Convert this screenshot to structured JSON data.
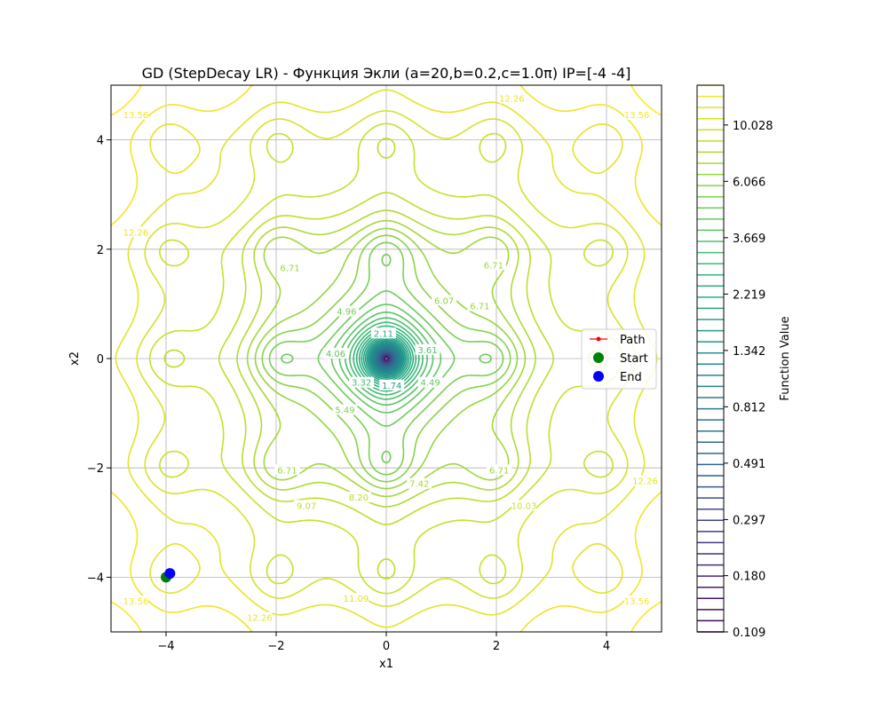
{
  "chart_data": {
    "type": "contour",
    "title": "GD (StepDecay LR) - Функция Экли (a=20,b=0.2,c=1.0π) IP=[-4 -4]",
    "xlabel": "x1",
    "ylabel": "x2",
    "xlim": [
      -5,
      5
    ],
    "ylim": [
      -5,
      5
    ],
    "x_ticks": [
      -4,
      -2,
      0,
      2,
      4
    ],
    "y_ticks": [
      -4,
      -2,
      0,
      2,
      4
    ],
    "x_tick_labels": [
      "−4",
      "−2",
      "0",
      "2",
      "4"
    ],
    "y_tick_labels": [
      "−4",
      "−2",
      "0",
      "2",
      "4"
    ],
    "grid": true,
    "function": {
      "name": "ackley",
      "a": 20,
      "b": 0.2,
      "c": 3.14159
    },
    "contour_levels": {
      "min": 0.109,
      "max": 14.3,
      "count": 50,
      "scale": "log"
    },
    "contour_labels": [
      {
        "text": "13.56",
        "x": -4.55,
        "y": 4.45
      },
      {
        "text": "12.26",
        "x": 2.28,
        "y": 4.75
      },
      {
        "text": "13.56",
        "x": 4.55,
        "y": 4.45
      },
      {
        "text": "12.26",
        "x": -4.55,
        "y": 2.3
      },
      {
        "text": "6.71",
        "x": -1.75,
        "y": 1.65
      },
      {
        "text": "6.71",
        "x": 1.95,
        "y": 1.7
      },
      {
        "text": "6.07",
        "x": 1.05,
        "y": 1.05
      },
      {
        "text": "6.71",
        "x": 1.7,
        "y": 0.95
      },
      {
        "text": "4.96",
        "x": -0.72,
        "y": 0.85
      },
      {
        "text": "4.06",
        "x": -0.92,
        "y": 0.08
      },
      {
        "text": "3.61",
        "x": 0.75,
        "y": 0.15
      },
      {
        "text": "4.49",
        "x": 0.8,
        "y": -0.45
      },
      {
        "text": "3.32",
        "x": -0.45,
        "y": -0.45
      },
      {
        "text": "2.11",
        "x": -0.05,
        "y": 0.45
      },
      {
        "text": "1.74",
        "x": 0.1,
        "y": -0.5
      },
      {
        "text": "5.49",
        "x": -0.75,
        "y": -0.95
      },
      {
        "text": "6.71",
        "x": -1.8,
        "y": -2.05
      },
      {
        "text": "6.71",
        "x": 2.05,
        "y": -2.05
      },
      {
        "text": "7.42",
        "x": 0.6,
        "y": -2.3
      },
      {
        "text": "8.20",
        "x": -0.5,
        "y": -2.55
      },
      {
        "text": "9.07",
        "x": -1.45,
        "y": -2.7
      },
      {
        "text": "10.03",
        "x": 2.5,
        "y": -2.7
      },
      {
        "text": "12.26",
        "x": 4.7,
        "y": -2.25
      },
      {
        "text": "11.09",
        "x": -0.55,
        "y": -4.4
      },
      {
        "text": "13.56",
        "x": -4.55,
        "y": -4.45
      },
      {
        "text": "12.26",
        "x": -2.3,
        "y": -4.75
      },
      {
        "text": "13.56",
        "x": 4.55,
        "y": -4.45
      }
    ],
    "path": {
      "x": [
        -4.0,
        -3.97,
        -3.95,
        -3.93
      ],
      "y": [
        -4.0,
        -3.97,
        -3.95,
        -3.93
      ]
    },
    "start": {
      "x": -4.0,
      "y": -4.0
    },
    "end": {
      "x": -3.93,
      "y": -3.93
    },
    "legend": {
      "location": "center-right",
      "entries": [
        {
          "label": "Path",
          "color": "#ff0000",
          "kind": "line-marker"
        },
        {
          "label": "Start",
          "color": "#008000",
          "kind": "marker"
        },
        {
          "label": "End",
          "color": "#0000ff",
          "kind": "marker"
        }
      ]
    },
    "colorbar": {
      "label": "Function Value",
      "colormap": "viridis",
      "ticks": [
        {
          "label": "10.028",
          "value": 10.028
        },
        {
          "label": "6.066",
          "value": 6.066
        },
        {
          "label": "3.669",
          "value": 3.669
        },
        {
          "label": "2.219",
          "value": 2.219
        },
        {
          "label": "1.342",
          "value": 1.342
        },
        {
          "label": "0.812",
          "value": 0.812
        },
        {
          "label": "0.491",
          "value": 0.491
        },
        {
          "label": "0.297",
          "value": 0.297
        },
        {
          "label": "0.180",
          "value": 0.18
        },
        {
          "label": "0.109",
          "value": 0.109
        }
      ]
    }
  }
}
